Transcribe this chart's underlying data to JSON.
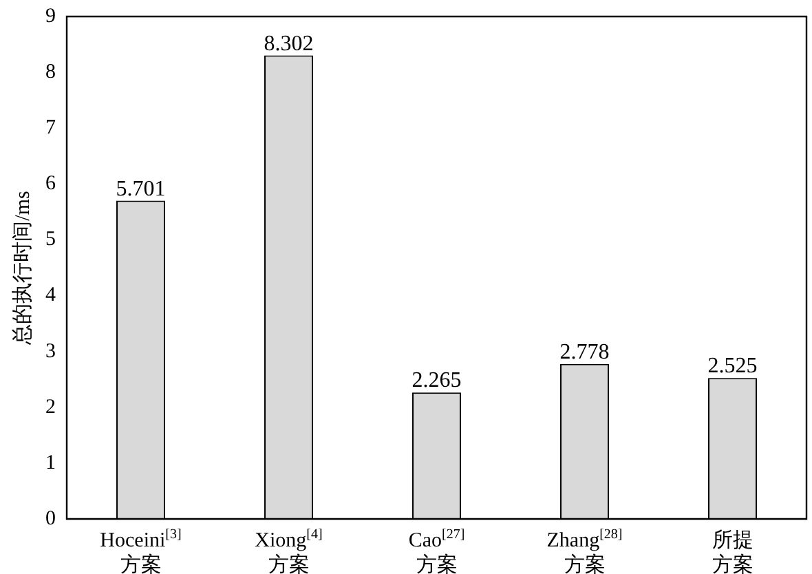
{
  "chart_data": {
    "type": "bar",
    "ylabel": "总的执行时间/ms",
    "categories": [
      "Hoceini$^{[3]}$方案",
      "Xiong$^{[4]}$方案",
      "Cao$^{[27]}$方案",
      "Zhang$^{[28]}$方案",
      "所提方案"
    ],
    "values": [
      5.701,
      8.302,
      2.265,
      2.778,
      2.525
    ],
    "color": "#d9d9d9",
    "ylim": [
      0,
      9
    ],
    "yticks": [
      0,
      1,
      2,
      3,
      4,
      5,
      6,
      7,
      8,
      9
    ],
    "grid": false,
    "legend": false,
    "data_labels": true
  }
}
